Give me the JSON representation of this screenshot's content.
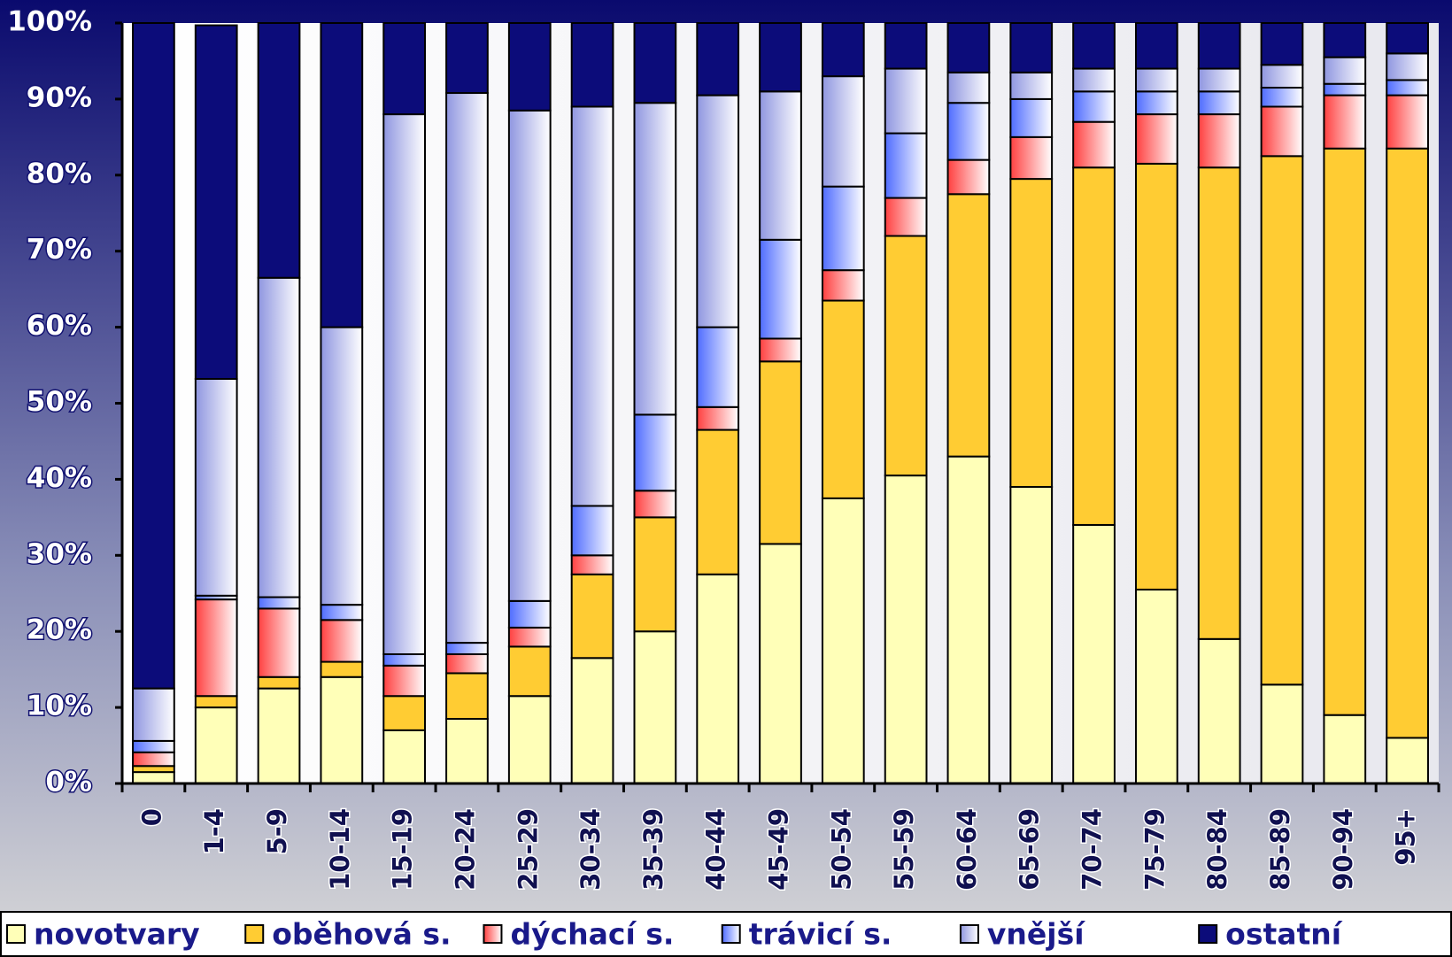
{
  "chart_data": {
    "type": "stacked_bar",
    "categories": [
      "0",
      "1-4",
      "5-9",
      "10-14",
      "15-19",
      "20-24",
      "25-29",
      "30-34",
      "35-39",
      "40-44",
      "45-49",
      "50-54",
      "55-59",
      "60-64",
      "65-69",
      "70-74",
      "75-79",
      "80-84",
      "85-89",
      "90-94",
      "95+"
    ],
    "series": [
      {
        "name": "novotvary",
        "color": "#ffffb8",
        "values": [
          1.5,
          10,
          12.5,
          14,
          7,
          8.5,
          11.5,
          16.5,
          20,
          27.5,
          31.5,
          37.5,
          40.5,
          43,
          39,
          34,
          25.5,
          19,
          13,
          9,
          6
        ]
      },
      {
        "name": "oběhová s.",
        "color": "#ffcc33",
        "values": [
          0.8,
          1.5,
          1.5,
          2,
          4.5,
          6,
          6.5,
          11,
          15,
          19,
          24,
          26,
          31.5,
          34.5,
          40.5,
          47,
          56,
          62,
          69.5,
          74.5,
          77.5
        ]
      },
      {
        "name": "dýchací s.",
        "color": "#ff4040",
        "values": [
          1.8,
          12.7,
          9,
          5.5,
          4,
          2.5,
          2.5,
          2.5,
          3.5,
          3,
          3,
          4,
          5,
          4.5,
          5.5,
          6,
          6.5,
          7,
          6.5,
          7,
          7
        ]
      },
      {
        "name": "trávicí s.",
        "color": "#4f6cff",
        "values": [
          1.5,
          0.5,
          1.5,
          2,
          1.5,
          1.5,
          3.5,
          6.5,
          10,
          10.5,
          13,
          11,
          8.5,
          7.5,
          5,
          4,
          3,
          3,
          2.5,
          1.5,
          2
        ]
      },
      {
        "name": "vnější",
        "color": "#8f96e0",
        "values": [
          6.9,
          28.5,
          42,
          36.5,
          71,
          72.3,
          64.5,
          52.5,
          41,
          30.5,
          19.5,
          14.5,
          8.5,
          4,
          3.5,
          3,
          3,
          3,
          3,
          3.5,
          3.5
        ]
      },
      {
        "name": "ostatní",
        "color": "#0c0c7a",
        "values": [
          87.5,
          46.5,
          33.5,
          40,
          12,
          9.2,
          11.5,
          11,
          10.5,
          9.5,
          9,
          7,
          6,
          6.5,
          6.5,
          6,
          6,
          6,
          5.5,
          4.5,
          4
        ]
      }
    ],
    "ylim": [
      0,
      100
    ],
    "yticks": [
      {
        "value": 0,
        "label": "0%"
      },
      {
        "value": 10,
        "label": "10%"
      },
      {
        "value": 20,
        "label": "20%"
      },
      {
        "value": 30,
        "label": "30%"
      },
      {
        "value": 40,
        "label": "40%"
      },
      {
        "value": 50,
        "label": "50%"
      },
      {
        "value": 60,
        "label": "60%"
      },
      {
        "value": 70,
        "label": "70%"
      },
      {
        "value": 80,
        "label": "80%"
      },
      {
        "value": 90,
        "label": "90%"
      },
      {
        "value": 100,
        "label": "100%"
      }
    ],
    "grid": false,
    "legend": "bottom"
  }
}
